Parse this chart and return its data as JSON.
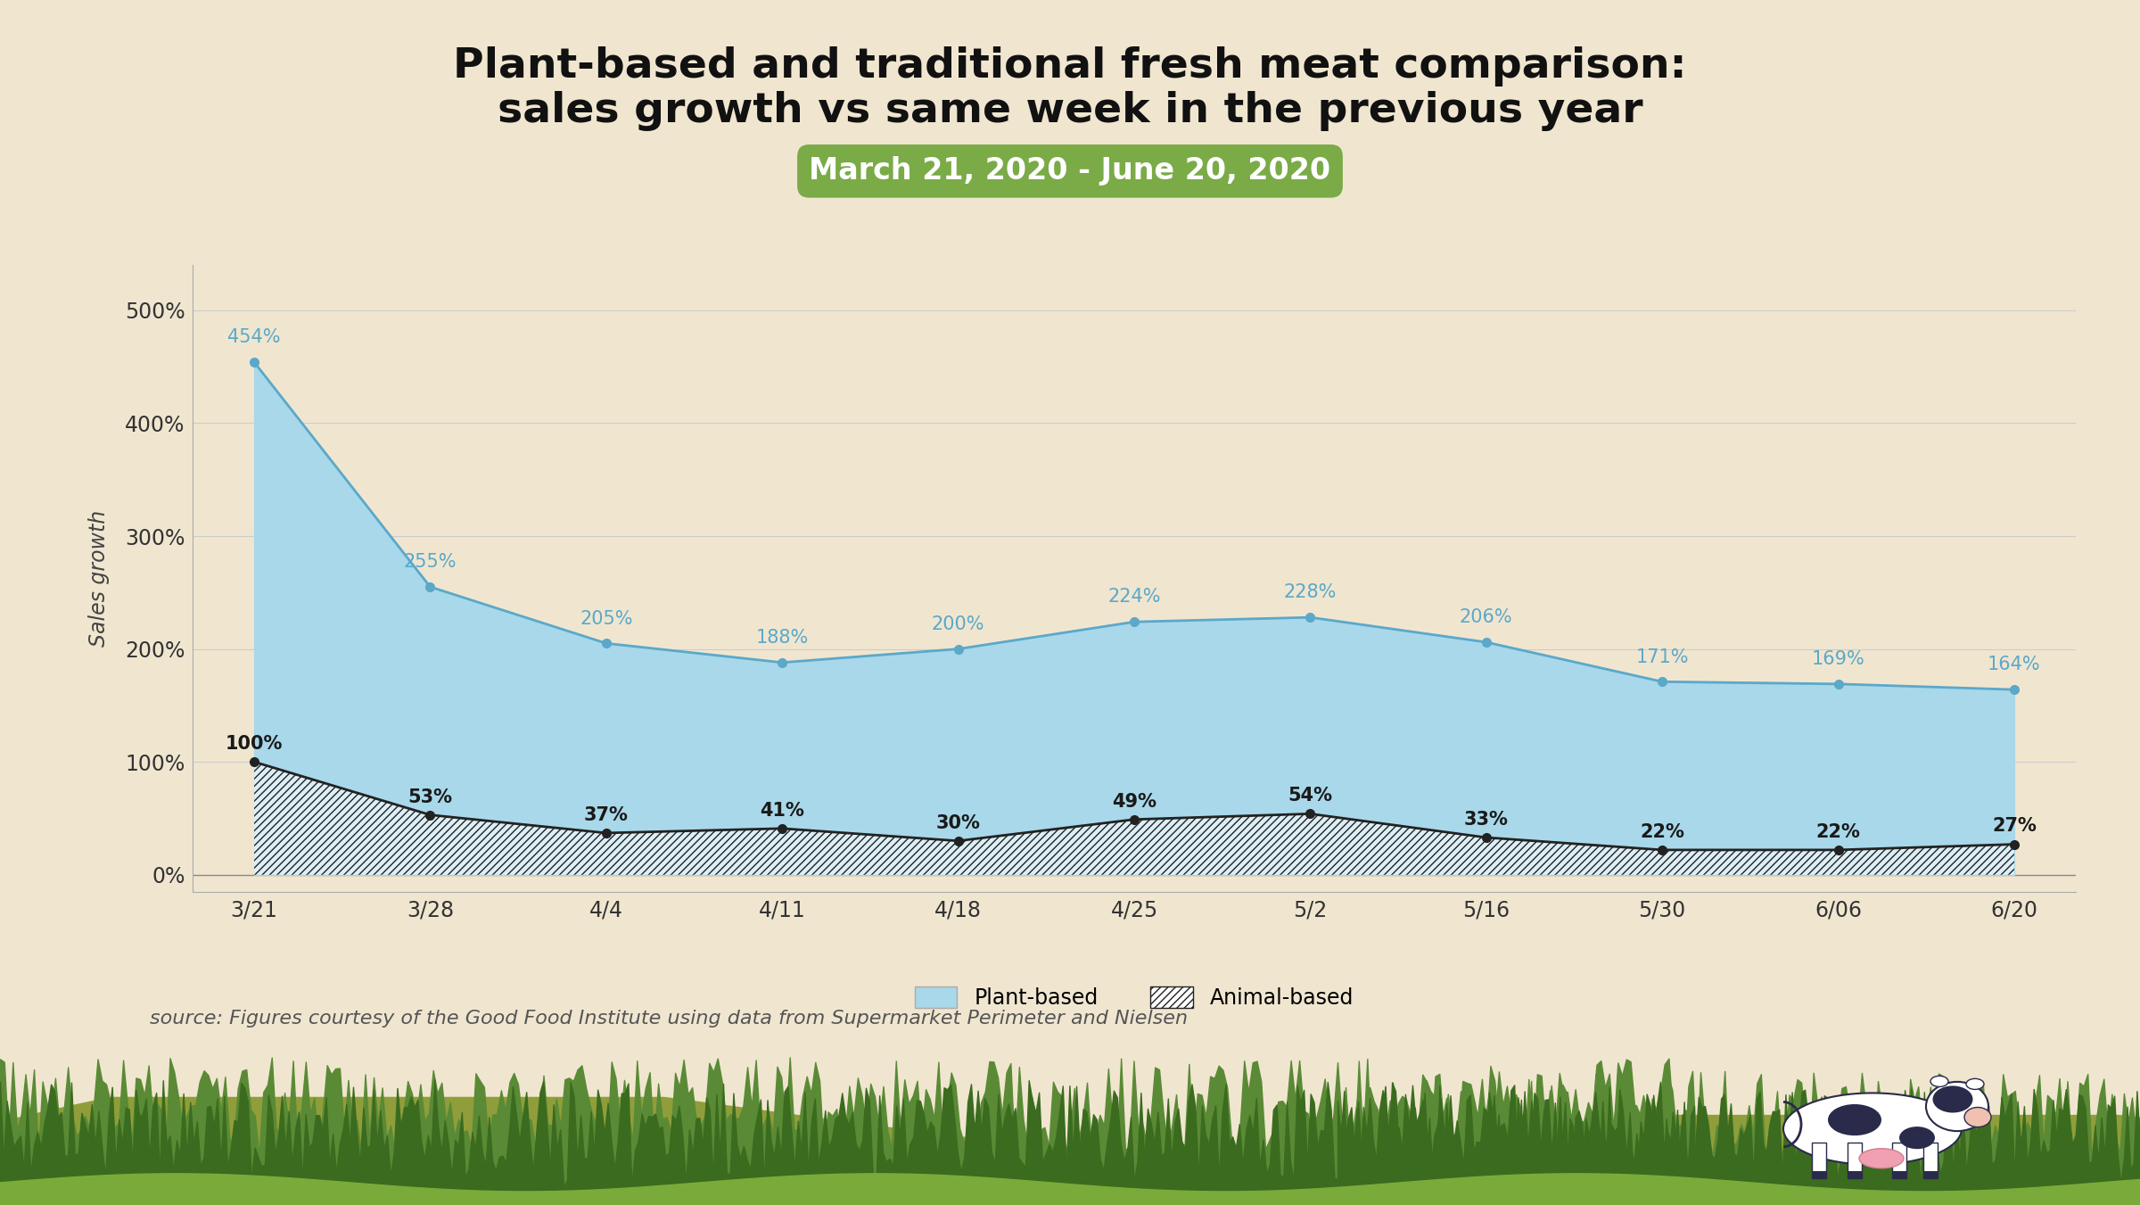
{
  "title_line1": "Plant-based and traditional fresh meat comparison:",
  "title_line2": "sales growth vs same week in the previous year",
  "subtitle": "March 21, 2020 - June 20, 2020",
  "subtitle_bg_color": "#7aab47",
  "subtitle_text_color": "#ffffff",
  "x_labels": [
    "3/21",
    "3/28",
    "4/4",
    "4/11",
    "4/18",
    "4/25",
    "5/2",
    "5/16",
    "5/30",
    "6/06",
    "6/20"
  ],
  "plant_based": [
    454,
    255,
    205,
    188,
    200,
    224,
    228,
    206,
    171,
    169,
    164
  ],
  "animal_based": [
    100,
    53,
    37,
    41,
    30,
    49,
    54,
    33,
    22,
    22,
    27
  ],
  "plant_color": "#a8d8ea",
  "plant_line_color": "#5ba8c9",
  "animal_line_color": "#222222",
  "background_color": "#f0e6d0",
  "plot_bg_color": "#f0e6d0",
  "ylabel": "Sales growth",
  "yticks": [
    0,
    100,
    200,
    300,
    400,
    500
  ],
  "ylim": [
    -15,
    540
  ],
  "source_text": "source: Figures courtesy of the Good Food Institute using data from Supermarket Perimeter and Nielsen",
  "title_fontsize": 34,
  "subtitle_fontsize": 24,
  "axis_fontsize": 17,
  "label_fontsize": 15,
  "source_fontsize": 16,
  "tree_color_far": "#5a8a35",
  "tree_color_mid": "#3d6b1e",
  "hill_color": "#8aab3a",
  "hill_color2": "#6e8f28"
}
